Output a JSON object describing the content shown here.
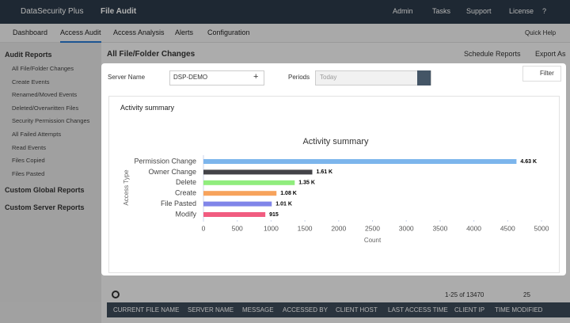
{
  "app": {
    "name": "DataSecurity Plus",
    "module": "File Audit",
    "top_links": [
      "Admin",
      "Tasks",
      "Support",
      "License",
      "?"
    ]
  },
  "tabs": [
    "Dashboard",
    "Access Audit",
    "Access Analysis",
    "Alerts",
    "Configuration"
  ],
  "quick_help": "Quick Help",
  "sidebar": {
    "section": "Audit Reports",
    "items": [
      "All File/Folder Changes",
      "Create Events",
      "Renamed/Moved Events",
      "Deleted/Overwritten Files",
      "Security Permission Changes",
      "All Failed Attempts",
      "Read Events",
      "Files Copied",
      "Files Pasted"
    ],
    "other_sections": [
      "Custom Global Reports",
      "Custom Server Reports"
    ]
  },
  "page": {
    "title": "All File/Folder Changes",
    "actions": [
      "Schedule Reports",
      "Export As"
    ]
  },
  "modal": {
    "server_label": "Server Name",
    "server_value": "DSP-DEMO",
    "add": "+",
    "period_label": "Periods",
    "period_value": "Today",
    "filter": "Filter",
    "view": "Activity summary"
  },
  "table": {
    "pagination": "1-25 of 13470",
    "page_size": "25",
    "columns": [
      "CURRENT FILE NAME",
      "SERVER NAME",
      "MESSAGE",
      "ACCESSED BY",
      "CLIENT HOST",
      "LAST ACCESS TIME",
      "CLIENT IP",
      "TIME MODIFIED"
    ]
  },
  "chart_data": {
    "type": "bar",
    "horizontal": true,
    "title": "Activity summary",
    "x_label": "Count",
    "y_label": "Access Type",
    "categories": [
      "Permission Change",
      "Owner Change",
      "Delete",
      "Create",
      "File Pasted",
      "Modify"
    ],
    "values": [
      4630,
      1610,
      1350,
      1080,
      1010,
      915
    ],
    "value_labels": [
      "4.63 K",
      "1.61 K",
      "1.35 K",
      "1.08 K",
      "1.01 K",
      "915"
    ],
    "colors": [
      "#7cb5ec",
      "#434348",
      "#90ed7d",
      "#f7a35c",
      "#8085e9",
      "#f15c80"
    ],
    "xlim": [
      0,
      5000
    ],
    "xticks": [
      0,
      500,
      1000,
      1500,
      2000,
      2500,
      3000,
      3500,
      4000,
      4500,
      5000
    ]
  }
}
